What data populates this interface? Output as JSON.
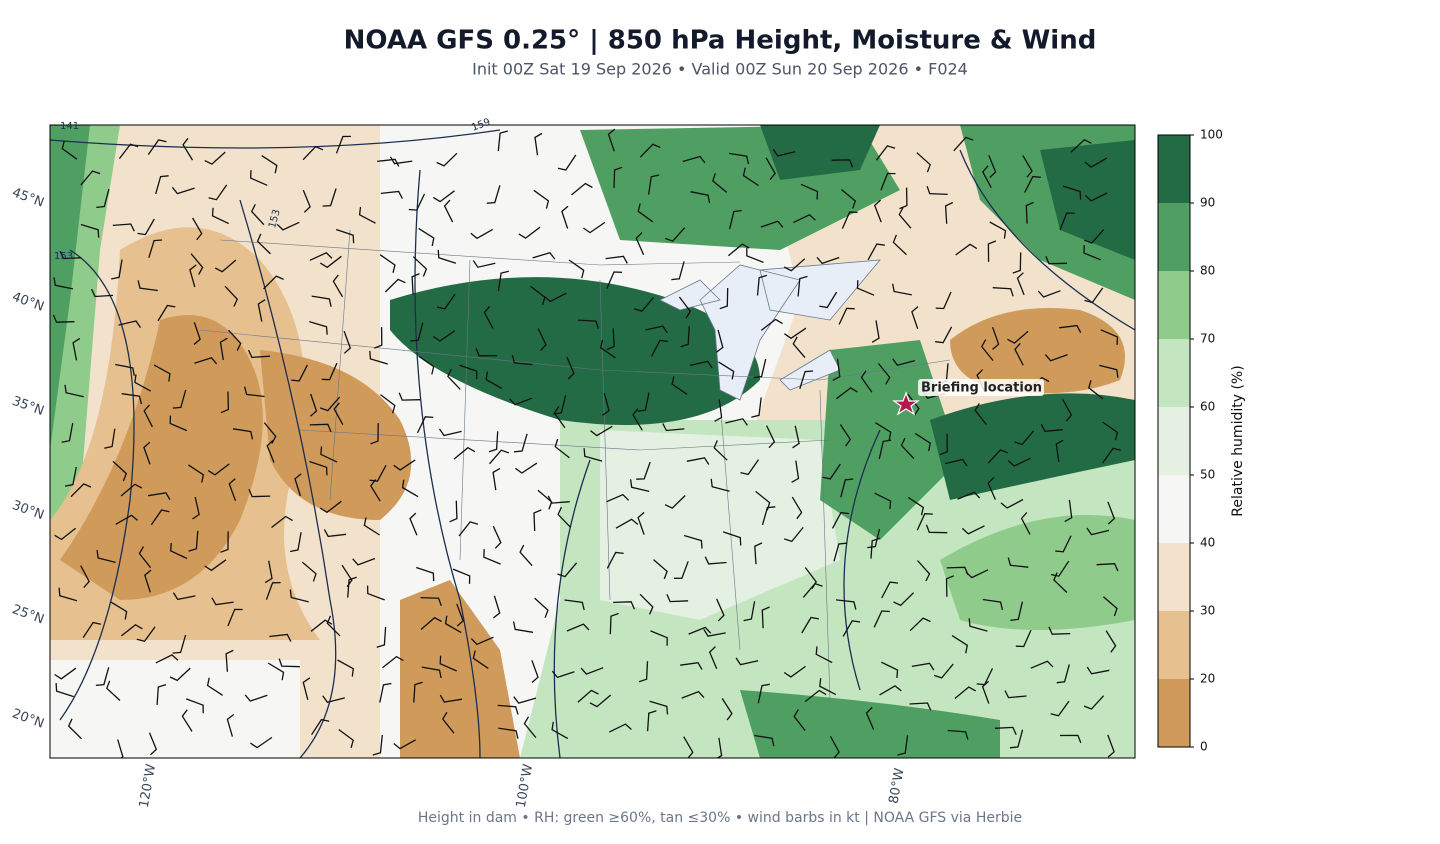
{
  "header": {
    "title": "NOAA GFS 0.25°  |  850 hPa Height, Moisture & Wind",
    "subtitle": "Init 00Z Sat 19 Sep 2026  •  Valid 00Z Sun 20 Sep 2026  •  F024"
  },
  "map": {
    "lat_labels": [
      "45°N",
      "40°N",
      "35°N",
      "30°N",
      "25°N",
      "20°N"
    ],
    "lon_labels": [
      "120°W",
      "100°W",
      "80°W"
    ],
    "contour_labels": [
      "141",
      "153",
      "153",
      "159"
    ],
    "marker": {
      "label": "Briefing location"
    }
  },
  "colorbar": {
    "label": "Relative humidity (%)",
    "ticks": [
      0,
      20,
      30,
      40,
      50,
      60,
      70,
      80,
      90,
      100
    ],
    "colors": [
      "#cf9a5a",
      "#e6c08f",
      "#f2e2cc",
      "#f6f6f4",
      "#e4f1e2",
      "#c3e5bf",
      "#8fcb8a",
      "#4f9f62",
      "#236b45"
    ]
  },
  "footer": "Height in dam • RH: green ≥60%, tan ≤30% • wind barbs in kt  |  NOAA GFS via Herbie"
}
